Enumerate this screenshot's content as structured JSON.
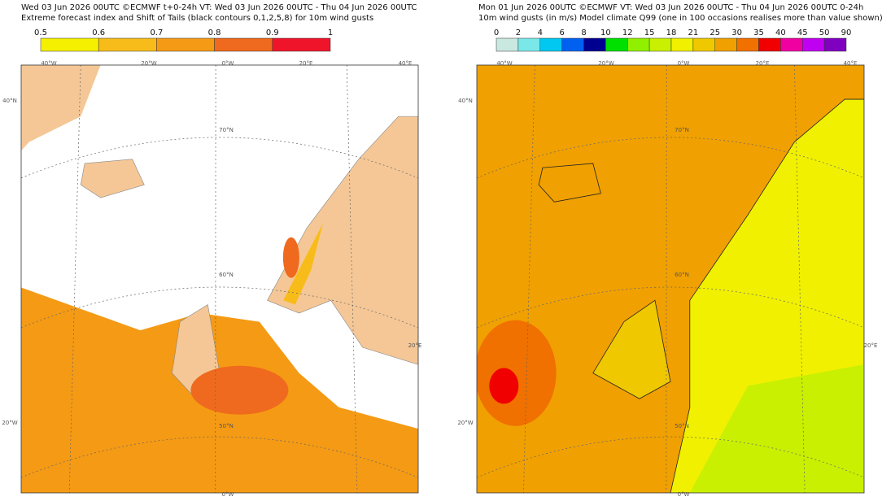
{
  "panels": [
    {
      "title": [
        "Wed 03 Jun 2026 00UTC ©ECMWF t+0-24h  VT: Wed 03 Jun 2026 00UTC - Thu 04 Jun 2026 00UTC",
        "Extreme forecast index and Shift of Tails (black contours 0,1,2,5,8) for 10m wind gusts"
      ],
      "colorbar": {
        "labels": [
          "0.5",
          "0.6",
          "0.7",
          "0.8",
          "0.9",
          "1"
        ],
        "colors": [
          "#f5f000",
          "#f8bc1a",
          "#f59a14",
          "#ef6a1e",
          "#f0142a"
        ]
      },
      "map_labels": [
        "40°W",
        "20°W",
        "0°W",
        "20°E",
        "40°E",
        "40°N",
        "70°N",
        "60°N",
        "50°N",
        "20°E",
        "20°W",
        "0°W"
      ]
    },
    {
      "title": [
        "Mon 01 Jun 2026 00UTC ©ECMWF VT: Wed 03 Jun 2026 00UTC - Thu 04 Jun 2026 00UTC  0-24h",
        "10m wind gusts (in m/s)  Model climate Q99 (one in 100 occasions realises more than value shown)"
      ],
      "colorbar": {
        "labels": [
          "0",
          "2",
          "4",
          "6",
          "8",
          "10",
          "12",
          "15",
          "18",
          "21",
          "25",
          "30",
          "35",
          "40",
          "45",
          "50",
          "90"
        ],
        "colors": [
          "#c8e8e0",
          "#7ae8e8",
          "#00c8f0",
          "#0060f0",
          "#000090",
          "#00e000",
          "#90f000",
          "#c8f000",
          "#f0f000",
          "#f0c800",
          "#f0a000",
          "#f07000",
          "#f00000",
          "#f000a0",
          "#c000f0",
          "#8000c0"
        ]
      },
      "map_labels": [
        "40°W",
        "20°W",
        "0°W",
        "20°E",
        "40°E",
        "40°N",
        "70°N",
        "60°N",
        "50°N",
        "20°E",
        "20°W",
        "0°W"
      ]
    }
  ]
}
